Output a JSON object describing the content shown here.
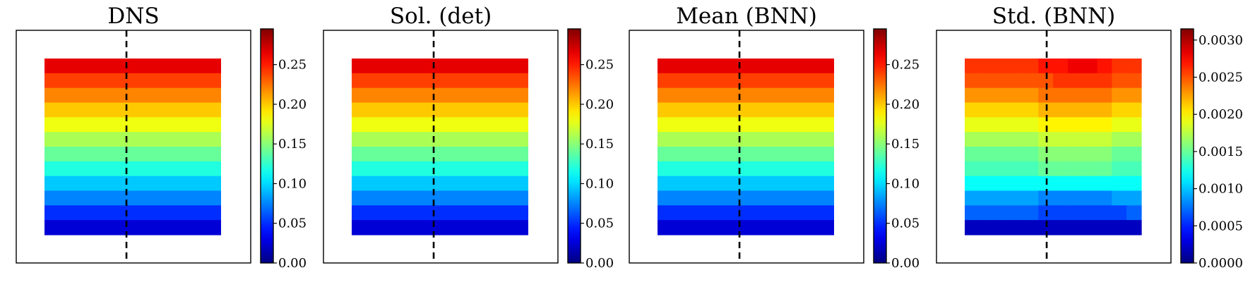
{
  "chart_data": [
    {
      "type": "heatmap",
      "title": "DNS",
      "grid": false,
      "rows_top_to_bottom": [
        0.265,
        0.24,
        0.22,
        0.2,
        0.18,
        0.16,
        0.14,
        0.12,
        0.095,
        0.075,
        0.05,
        0.025
      ],
      "colorbar": {
        "range": [
          0.0,
          0.295
        ],
        "ticks": [
          "0.00",
          "0.05",
          "0.10",
          "0.15",
          "0.20",
          "0.25"
        ]
      },
      "annotation": "vertical dashed line"
    },
    {
      "type": "heatmap",
      "title": "Sol. (det)",
      "grid": false,
      "rows_top_to_bottom": [
        0.265,
        0.24,
        0.22,
        0.2,
        0.18,
        0.16,
        0.14,
        0.12,
        0.095,
        0.075,
        0.05,
        0.025
      ],
      "colorbar": {
        "range": [
          0.0,
          0.295
        ],
        "ticks": [
          "0.00",
          "0.05",
          "0.10",
          "0.15",
          "0.20",
          "0.25"
        ]
      },
      "annotation": "vertical dashed line"
    },
    {
      "type": "heatmap",
      "title": "Mean (BNN)",
      "grid": false,
      "rows_top_to_bottom": [
        0.265,
        0.24,
        0.22,
        0.2,
        0.18,
        0.16,
        0.14,
        0.12,
        0.095,
        0.075,
        0.05,
        0.025
      ],
      "colorbar": {
        "range": [
          0.0,
          0.295
        ],
        "ticks": [
          "0.00",
          "0.05",
          "0.10",
          "0.15",
          "0.20",
          "0.25"
        ]
      },
      "annotation": "vertical dashed line"
    },
    {
      "type": "heatmap",
      "title": "Std. (BNN)",
      "grid": false,
      "cells_top_to_bottom": [
        [
          0.0026,
          0.0026,
          0.0026,
          0.0026,
          0.0026,
          0.0027,
          0.0027,
          0.0028,
          0.0028,
          0.0027,
          0.0026,
          0.0026
        ],
        [
          0.0025,
          0.0025,
          0.0025,
          0.0025,
          0.0025,
          0.0025,
          0.0026,
          0.0026,
          0.0026,
          0.0026,
          0.0025,
          0.0025
        ],
        [
          0.0023,
          0.0023,
          0.0023,
          0.0023,
          0.0023,
          0.0024,
          0.0024,
          0.0024,
          0.0024,
          0.0024,
          0.0023,
          0.0023
        ],
        [
          0.0021,
          0.0021,
          0.0021,
          0.0021,
          0.0021,
          0.0022,
          0.0022,
          0.0022,
          0.0022,
          0.0022,
          0.0021,
          0.0021
        ],
        [
          0.0019,
          0.0019,
          0.0019,
          0.0019,
          0.0019,
          0.002,
          0.002,
          0.002,
          0.002,
          0.002,
          0.0019,
          0.0019
        ],
        [
          0.0017,
          0.0017,
          0.0017,
          0.0017,
          0.0017,
          0.0018,
          0.0018,
          0.0018,
          0.0018,
          0.0018,
          0.0017,
          0.0017
        ],
        [
          0.0015,
          0.0015,
          0.0015,
          0.0015,
          0.0015,
          0.0016,
          0.0016,
          0.0016,
          0.0016,
          0.0016,
          0.0015,
          0.0015
        ],
        [
          0.0014,
          0.0014,
          0.0014,
          0.0014,
          0.0014,
          0.0015,
          0.0015,
          0.0015,
          0.0015,
          0.0015,
          0.0014,
          0.0014
        ],
        [
          0.0012,
          0.0012,
          0.0012,
          0.0012,
          0.0012,
          0.0012,
          0.0012,
          0.0012,
          0.0012,
          0.0012,
          0.0012,
          0.0012
        ],
        [
          0.0009,
          0.0009,
          0.0009,
          0.0009,
          0.0009,
          0.0008,
          0.0008,
          0.0008,
          0.0008,
          0.0008,
          0.0009,
          0.0009
        ],
        [
          0.0007,
          0.0007,
          0.0007,
          0.0007,
          0.0007,
          0.0006,
          0.0006,
          0.0006,
          0.0006,
          0.0006,
          0.0006,
          0.0007
        ],
        [
          0.0002,
          0.0002,
          0.0002,
          0.0002,
          0.0002,
          0.0002,
          0.0002,
          0.0002,
          0.0002,
          0.0002,
          0.0002,
          0.0002
        ]
      ],
      "colorbar": {
        "range": [
          0.0,
          0.00315
        ],
        "ticks": [
          "0.0000",
          "0.0005",
          "0.0010",
          "0.0015",
          "0.0020",
          "0.0025",
          "0.0030"
        ]
      },
      "annotation": "vertical dashed line"
    }
  ],
  "colormap": "jet",
  "colors": {
    "frame": "#000000",
    "background": "#ffffff"
  }
}
